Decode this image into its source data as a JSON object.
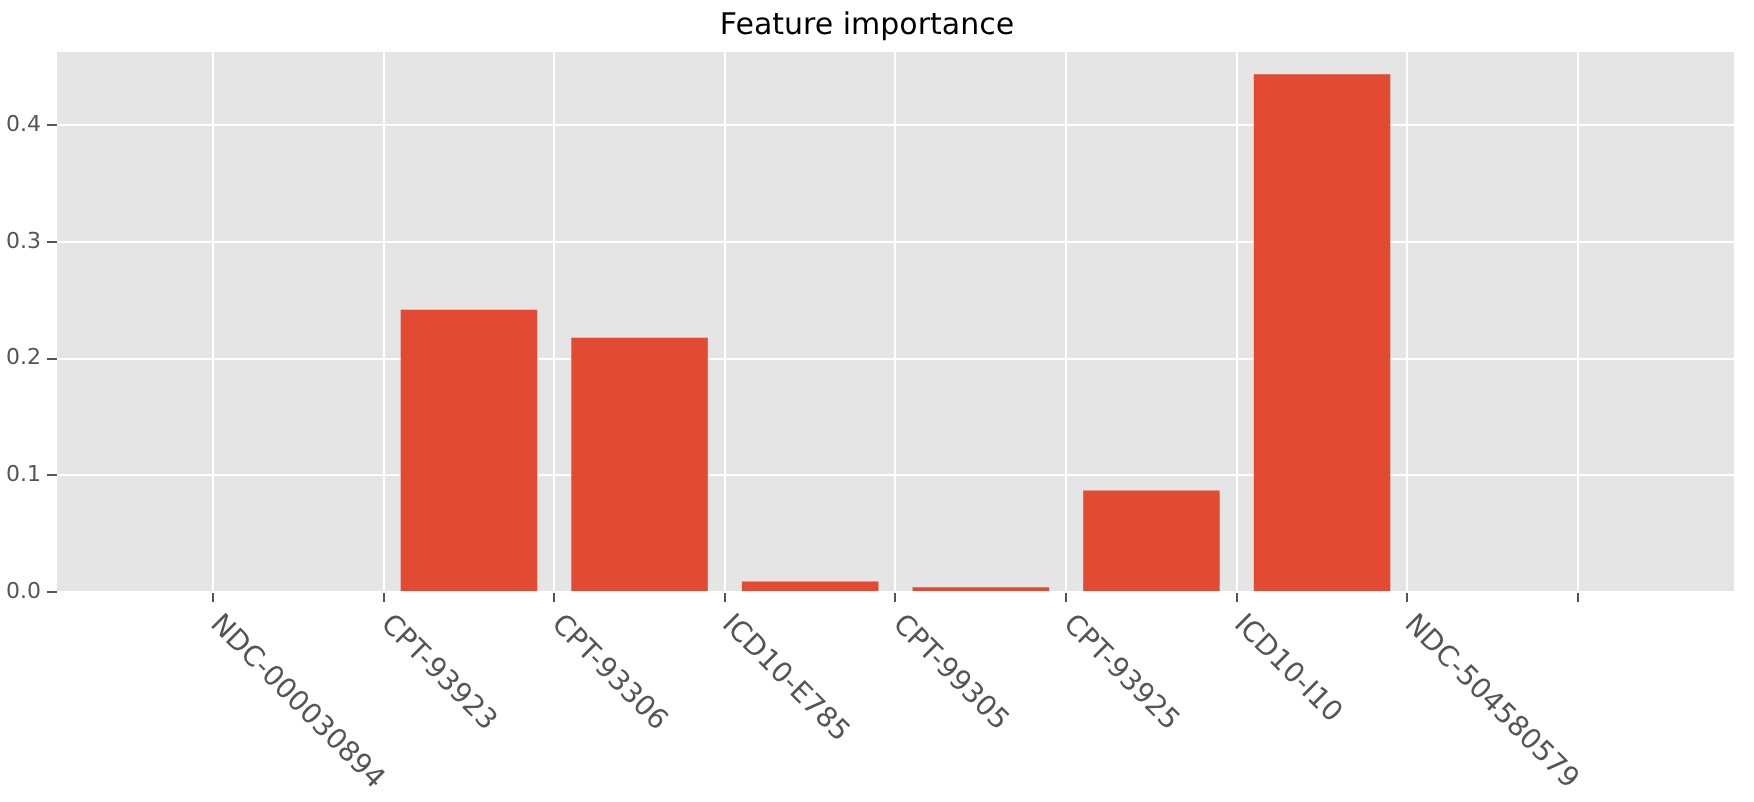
{
  "chart_data": {
    "type": "bar",
    "title": "Feature importance",
    "categories": [
      "NDC-000030894",
      "CPT-93923",
      "CPT-93306",
      "ICD10-E785",
      "CPT-99305",
      "CPT-93925",
      "ICD10-I10",
      "NDC-504580579"
    ],
    "values": [
      0,
      0.242,
      0.218,
      0.009,
      0.004,
      0.087,
      0.444,
      0
    ],
    "color": "#e24a33",
    "ylim": [
      0,
      0.463
    ],
    "yticks": [
      {
        "value": 0,
        "label": "0.0"
      },
      {
        "value": 0.1,
        "label": "0.1"
      },
      {
        "value": 0.2,
        "label": "0.2"
      },
      {
        "value": 0.3,
        "label": "0.3"
      },
      {
        "value": 0.4,
        "label": "0.4"
      }
    ],
    "grid": true
  }
}
